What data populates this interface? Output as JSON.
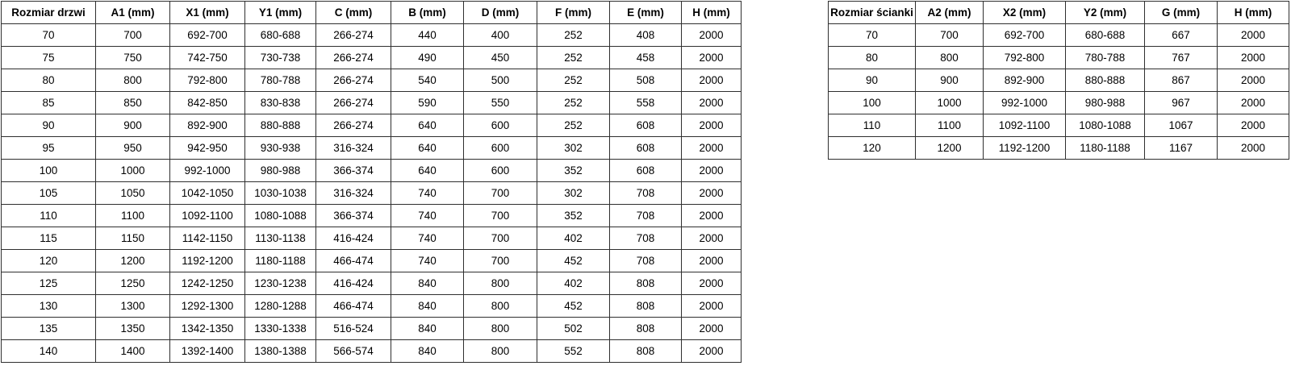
{
  "page": {
    "background_color": "#ffffff",
    "text_color": "#000000",
    "border_color": "#2f2f2f"
  },
  "door_table": {
    "headers": [
      "Rozmiar drzwi",
      "A1 (mm)",
      "X1 (mm)",
      "Y1 (mm)",
      "C (mm)",
      "B (mm)",
      "D (mm)",
      "F (mm)",
      "E (mm)",
      "H (mm)"
    ],
    "rows": [
      [
        "70",
        "700",
        "692-700",
        "680-688",
        "266-274",
        "440",
        "400",
        "252",
        "408",
        "2000"
      ],
      [
        "75",
        "750",
        "742-750",
        "730-738",
        "266-274",
        "490",
        "450",
        "252",
        "458",
        "2000"
      ],
      [
        "80",
        "800",
        "792-800",
        "780-788",
        "266-274",
        "540",
        "500",
        "252",
        "508",
        "2000"
      ],
      [
        "85",
        "850",
        "842-850",
        "830-838",
        "266-274",
        "590",
        "550",
        "252",
        "558",
        "2000"
      ],
      [
        "90",
        "900",
        "892-900",
        "880-888",
        "266-274",
        "640",
        "600",
        "252",
        "608",
        "2000"
      ],
      [
        "95",
        "950",
        "942-950",
        "930-938",
        "316-324",
        "640",
        "600",
        "302",
        "608",
        "2000"
      ],
      [
        "100",
        "1000",
        "992-1000",
        "980-988",
        "366-374",
        "640",
        "600",
        "352",
        "608",
        "2000"
      ],
      [
        "105",
        "1050",
        "1042-1050",
        "1030-1038",
        "316-324",
        "740",
        "700",
        "302",
        "708",
        "2000"
      ],
      [
        "110",
        "1100",
        "1092-1100",
        "1080-1088",
        "366-374",
        "740",
        "700",
        "352",
        "708",
        "2000"
      ],
      [
        "115",
        "1150",
        "1142-1150",
        "1130-1138",
        "416-424",
        "740",
        "700",
        "402",
        "708",
        "2000"
      ],
      [
        "120",
        "1200",
        "1192-1200",
        "1180-1188",
        "466-474",
        "740",
        "700",
        "452",
        "708",
        "2000"
      ],
      [
        "125",
        "1250",
        "1242-1250",
        "1230-1238",
        "416-424",
        "840",
        "800",
        "402",
        "808",
        "2000"
      ],
      [
        "130",
        "1300",
        "1292-1300",
        "1280-1288",
        "466-474",
        "840",
        "800",
        "452",
        "808",
        "2000"
      ],
      [
        "135",
        "1350",
        "1342-1350",
        "1330-1338",
        "516-524",
        "840",
        "800",
        "502",
        "808",
        "2000"
      ],
      [
        "140",
        "1400",
        "1392-1400",
        "1380-1388",
        "566-574",
        "840",
        "800",
        "552",
        "808",
        "2000"
      ]
    ]
  },
  "wall_table": {
    "headers": [
      "Rozmiar ścianki",
      "A2 (mm)",
      "X2 (mm)",
      "Y2 (mm)",
      "G (mm)",
      "H (mm)"
    ],
    "rows": [
      [
        "70",
        "700",
        "692-700",
        "680-688",
        "667",
        "2000"
      ],
      [
        "80",
        "800",
        "792-800",
        "780-788",
        "767",
        "2000"
      ],
      [
        "90",
        "900",
        "892-900",
        "880-888",
        "867",
        "2000"
      ],
      [
        "100",
        "1000",
        "992-1000",
        "980-988",
        "967",
        "2000"
      ],
      [
        "110",
        "1100",
        "1092-1100",
        "1080-1088",
        "1067",
        "2000"
      ],
      [
        "120",
        "1200",
        "1192-1200",
        "1180-1188",
        "1167",
        "2000"
      ]
    ]
  }
}
